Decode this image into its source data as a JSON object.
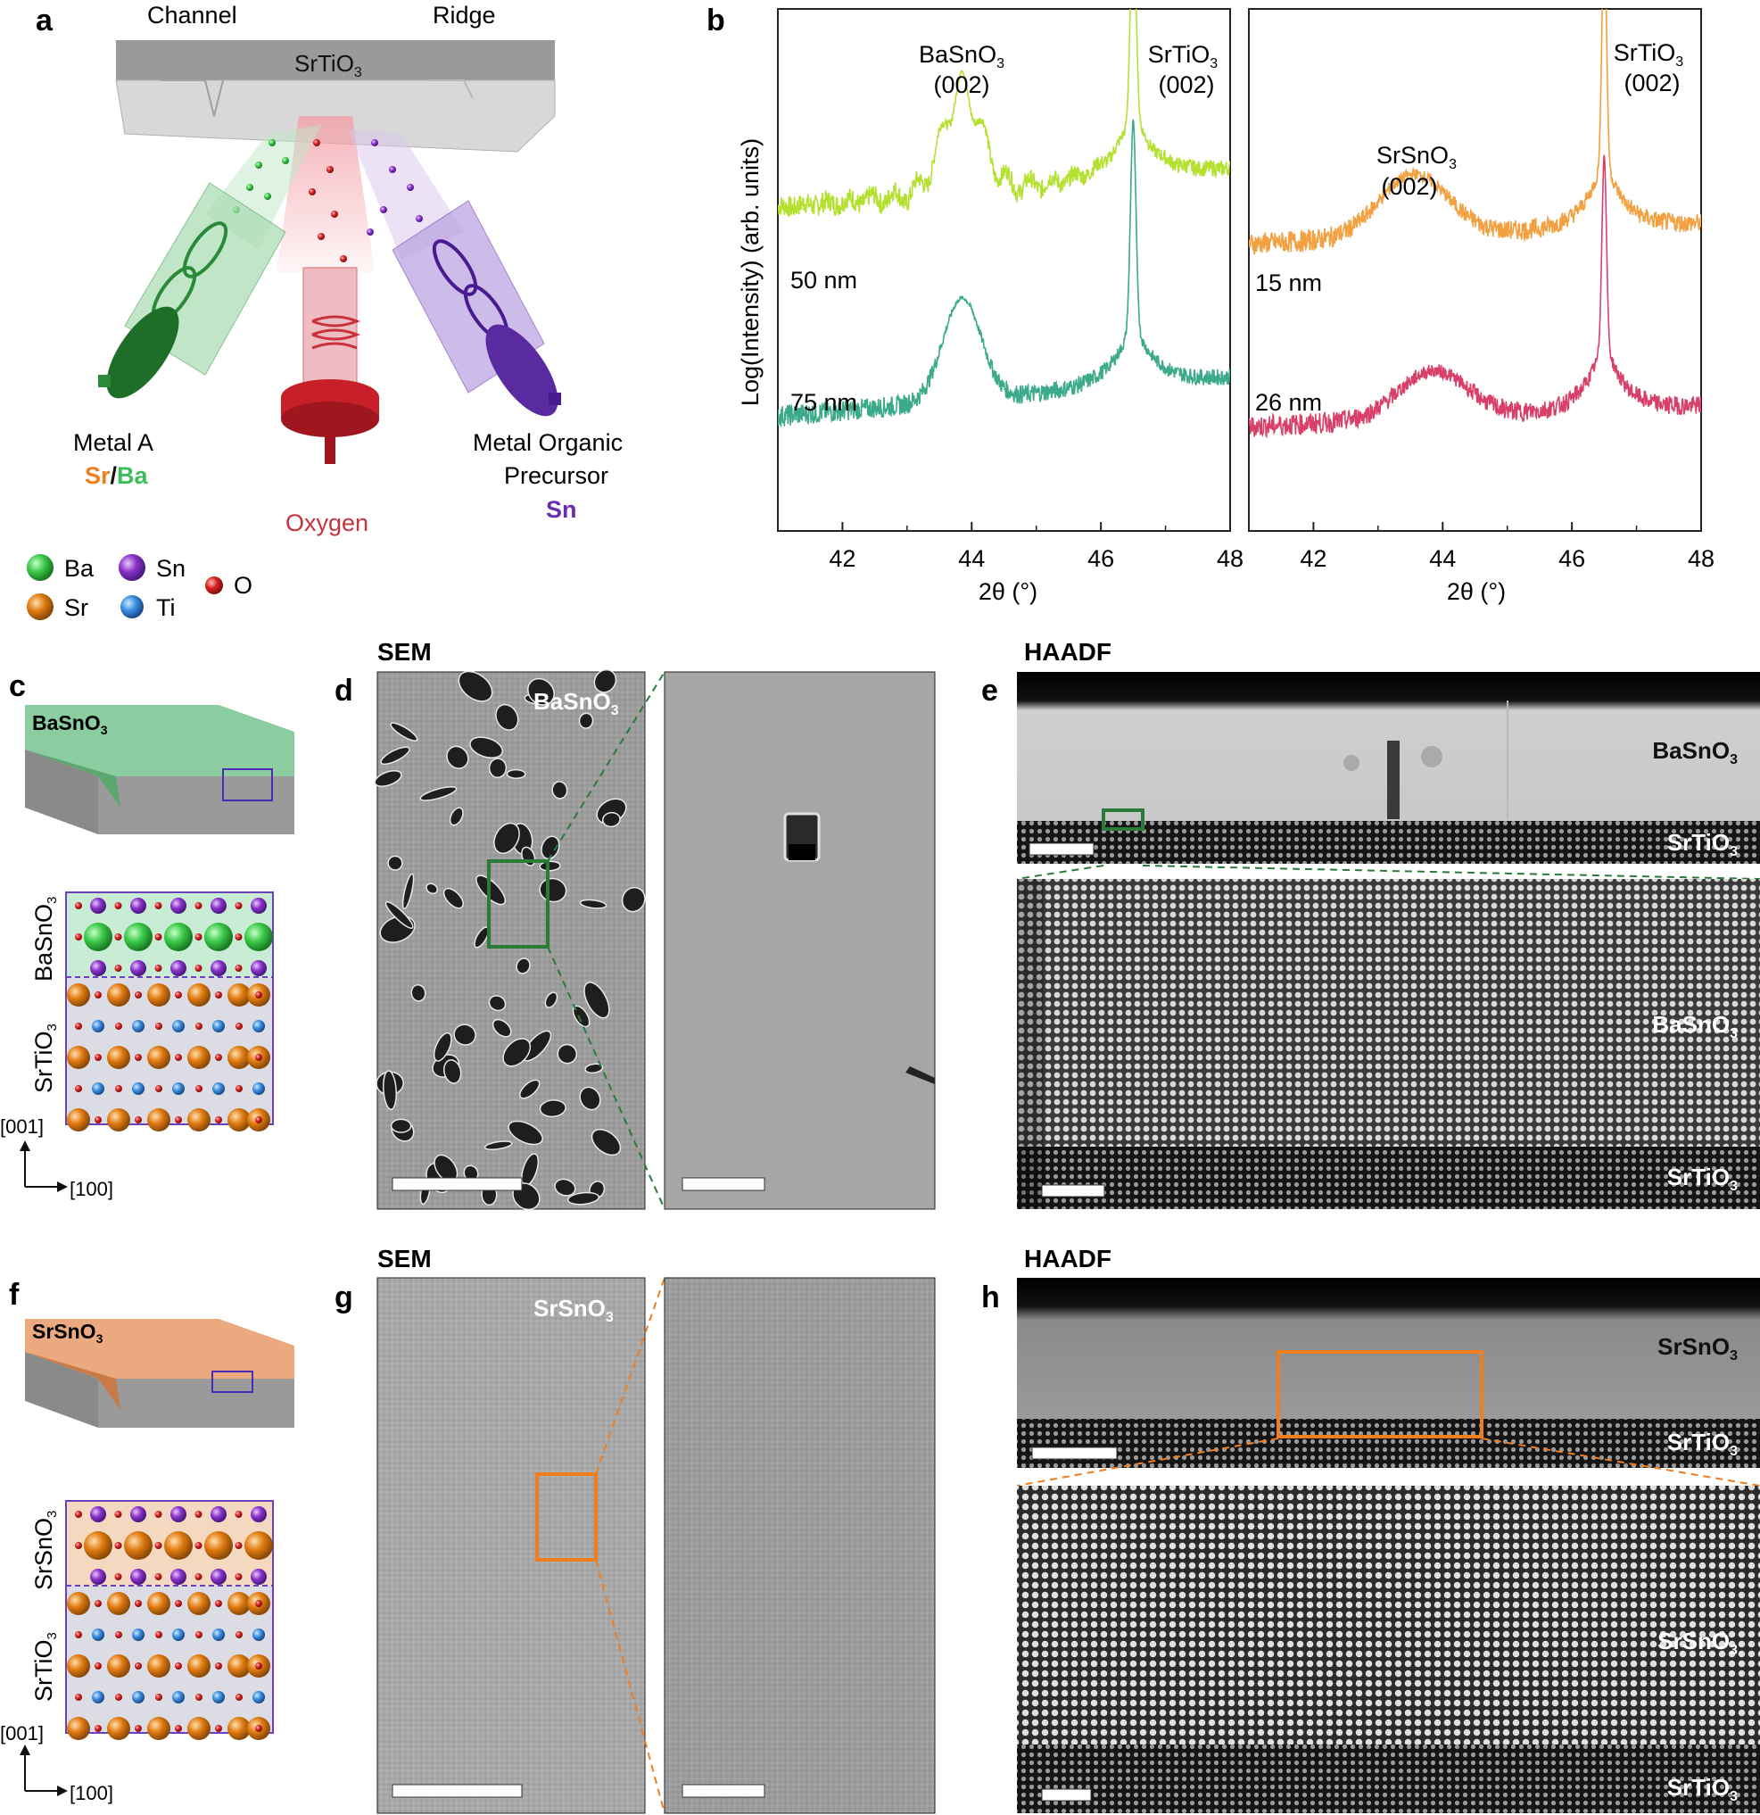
{
  "panels": {
    "a": "a",
    "b": "b",
    "c": "c",
    "d": "d",
    "e": "e",
    "f": "f",
    "g": "g",
    "h": "h"
  },
  "panel_a": {
    "channel": "Channel",
    "ridge": "Ridge",
    "substrate": "SrTiO",
    "metal_a": "Metal A",
    "sr": "Sr",
    "slash": "/",
    "ba": "Ba",
    "oxygen": "Oxygen",
    "mo_line1": "Metal Organic",
    "mo_line2": "Precursor",
    "sn": "Sn",
    "colors": {
      "sr": "#f07d1e",
      "ba": "#3cbf5a",
      "oxygen": "#c8323c",
      "sn": "#6a2db0"
    }
  },
  "legend": [
    {
      "label": "Ba",
      "color": "#3cc84a"
    },
    {
      "label": "Sn",
      "color": "#8a32c8"
    },
    {
      "label": "O",
      "color": "#d82020"
    },
    {
      "label": "Sr",
      "color": "#e07a10"
    },
    {
      "label": "Ti",
      "color": "#3a8ee0"
    }
  ],
  "chart_data": [
    {
      "type": "line",
      "xlabel": "2θ (°)",
      "ylabel": "Log(Intensity) (arb. units)",
      "xlim": [
        41,
        48
      ],
      "xticks": [
        "42",
        "44",
        "46",
        "48"
      ],
      "series": [
        {
          "name": "50 nm",
          "color": "#b4e030",
          "offset": 0.62
        },
        {
          "name": "75 nm",
          "color": "#3aaa88",
          "offset": 0.22
        }
      ],
      "annotations": [
        {
          "text": "BaSnO",
          "sub": "3",
          "line2": "(002)",
          "x": 43.85
        },
        {
          "text": "SrTiO",
          "sub": "3",
          "line2": "(002)",
          "x": 46.5
        }
      ]
    },
    {
      "type": "line",
      "xlabel": "2θ (°)",
      "xlim": [
        41,
        48
      ],
      "xticks": [
        "42",
        "44",
        "46",
        "48"
      ],
      "series": [
        {
          "name": "15 nm",
          "color": "#f2a040",
          "offset": 0.55
        },
        {
          "name": "26 nm",
          "color": "#d8406a",
          "offset": 0.2
        }
      ],
      "annotations": [
        {
          "text": "SrSnO",
          "sub": "3",
          "line2": "(002)",
          "x": 43.6
        },
        {
          "text": "SrTiO",
          "sub": "3",
          "line2": "(002)",
          "x": 46.5
        }
      ]
    }
  ],
  "panel_c": {
    "film": "BaSnO",
    "film_sub": "3",
    "side_film": "BaSnO",
    "side_sub_text": "SrTiO",
    "sub3": "3",
    "ax_vert": "[001]",
    "ax_horz": "[100]"
  },
  "panel_f": {
    "film": "SrSnO",
    "film_sub": "3",
    "side_film": "SrSnO",
    "side_sub_text": "SrTiO",
    "sub3": "3",
    "ax_vert": "[001]",
    "ax_horz": "[100]"
  },
  "panel_d": {
    "title": "SEM",
    "label": "BaSnO",
    "sub": "3"
  },
  "panel_g": {
    "title": "SEM",
    "label": "SrSnO",
    "sub": "3"
  },
  "panel_e": {
    "title": "HAADF",
    "film": "BaSnO",
    "substrate": "SrTiO",
    "sub": "3"
  },
  "panel_h": {
    "title": "HAADF",
    "film": "SrSnO",
    "substrate": "SrTiO",
    "sub": "3"
  }
}
